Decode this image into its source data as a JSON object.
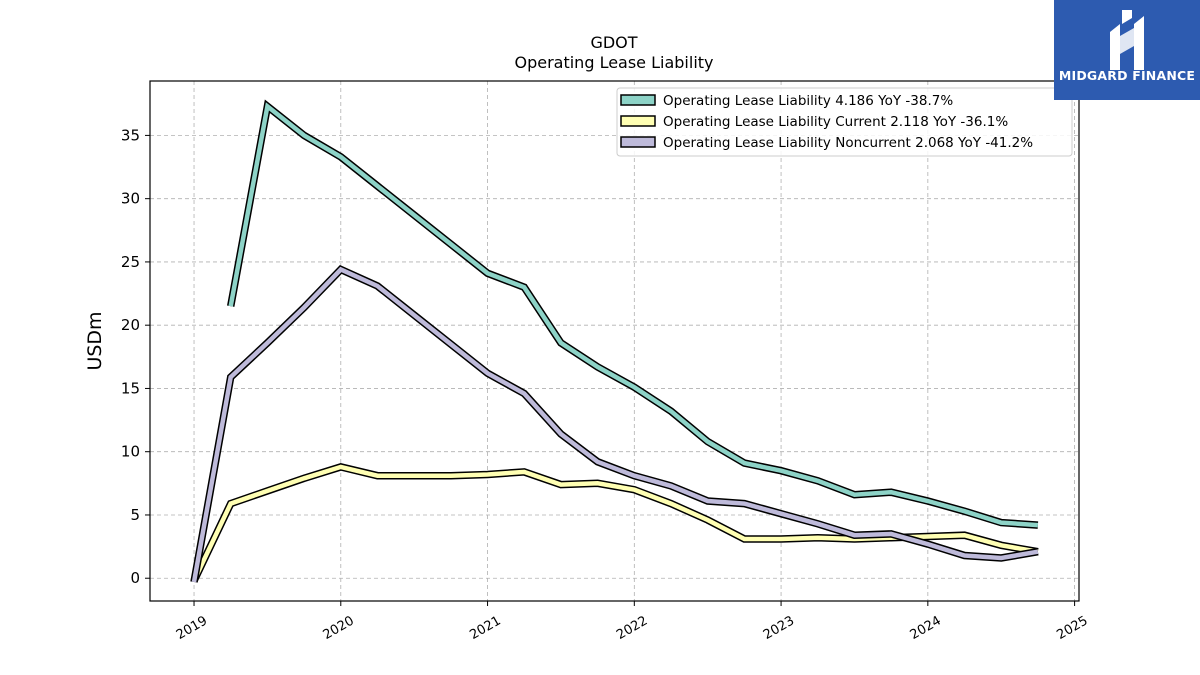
{
  "chart_data": {
    "type": "line",
    "title": "GDOT",
    "subtitle": "Operating Lease Liability",
    "ylabel": "USDm",
    "xlabel": "",
    "ylim": [
      -1.8,
      39.3
    ],
    "xlim": [
      2018.7,
      2025.03
    ],
    "yticks": [
      0,
      5,
      10,
      15,
      20,
      25,
      30,
      35
    ],
    "xticks": [
      2019,
      2020,
      2021,
      2022,
      2023,
      2024,
      2025
    ],
    "xtick_labels": [
      "2019",
      "2020",
      "2021",
      "2022",
      "2023",
      "2024",
      "2025"
    ],
    "grid": true,
    "legend_position": "top-right",
    "series": [
      {
        "name": "Operating Lease Liability",
        "legend_label": "Operating Lease Liability  4.186 YoY -38.7%",
        "color": "#8dd3c7",
        "x": [
          2019.25,
          2019.5,
          2019.75,
          2020.0,
          2020.25,
          2020.5,
          2020.75,
          2021.0,
          2021.25,
          2021.5,
          2021.75,
          2022.0,
          2022.25,
          2022.5,
          2022.75,
          2023.0,
          2023.25,
          2023.5,
          2023.75,
          2024.0,
          2024.25,
          2024.5,
          2024.75
        ],
        "y": [
          21.5,
          37.3,
          35.0,
          33.3,
          31.0,
          28.7,
          26.4,
          24.1,
          23.0,
          18.6,
          16.7,
          15.1,
          13.2,
          10.8,
          9.1,
          8.5,
          7.7,
          6.6,
          6.8,
          6.1,
          5.3,
          4.4,
          4.2
        ]
      },
      {
        "name": "Operating Lease Liability Current",
        "legend_label": "Operating Lease Liability Current  2.118 YoY -36.1%",
        "color": "#ffffb3",
        "x": [
          2019.0,
          2019.25,
          2019.5,
          2019.75,
          2020.0,
          2020.25,
          2020.5,
          2020.75,
          2021.0,
          2021.25,
          2021.5,
          2021.75,
          2022.0,
          2022.25,
          2022.5,
          2022.75,
          2023.0,
          2023.25,
          2023.5,
          2023.75,
          2024.0,
          2024.25,
          2024.5,
          2024.75
        ],
        "y": [
          -0.2,
          5.9,
          6.9,
          7.9,
          8.8,
          8.1,
          8.1,
          8.1,
          8.2,
          8.4,
          7.4,
          7.5,
          7.0,
          5.9,
          4.6,
          3.1,
          3.1,
          3.2,
          3.1,
          3.2,
          3.3,
          3.4,
          2.6,
          2.1
        ]
      },
      {
        "name": "Operating Lease Liability Noncurrent",
        "legend_label": "Operating Lease Liability Noncurrent  2.068 YoY -41.2%",
        "color": "#bebada",
        "x": [
          2019.0,
          2019.25,
          2019.5,
          2019.75,
          2020.0,
          2020.25,
          2020.5,
          2020.75,
          2021.0,
          2021.25,
          2021.5,
          2021.75,
          2022.0,
          2022.25,
          2022.5,
          2022.75,
          2023.0,
          2023.25,
          2023.5,
          2023.75,
          2024.0,
          2024.25,
          2024.5,
          2024.75
        ],
        "y": [
          -0.3,
          15.9,
          18.6,
          21.4,
          24.4,
          23.1,
          20.8,
          18.5,
          16.2,
          14.6,
          11.4,
          9.2,
          8.1,
          7.3,
          6.1,
          5.9,
          5.1,
          4.3,
          3.4,
          3.5,
          2.7,
          1.8,
          1.6,
          2.1
        ]
      }
    ]
  },
  "logo": {
    "text": "MIDGARD FINANCE",
    "icon": "midgard-finance-logo-icon",
    "background": "#2d5bb0"
  }
}
